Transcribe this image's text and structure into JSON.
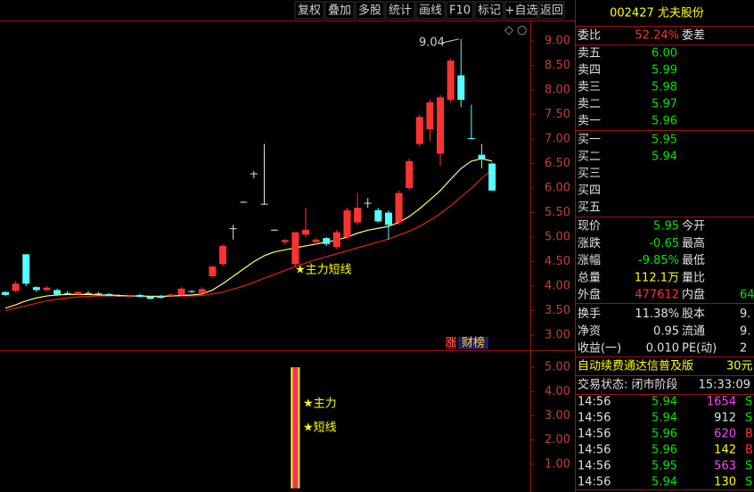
{
  "toolbar": {
    "buttons": [
      "复权",
      "叠加",
      "多股",
      "统计",
      "画线",
      "F10",
      "标记",
      "+自选",
      "返回"
    ]
  },
  "kline_chart": {
    "type": "candlestick",
    "ylim": [
      2.71,
      9.4
    ],
    "yticks": [
      {
        "value": 9,
        "label": "9.00"
      },
      {
        "value": 8.5,
        "label": "8.50"
      },
      {
        "value": 8,
        "label": "8.00"
      },
      {
        "value": 7.5,
        "label": "7.50"
      },
      {
        "value": 7,
        "label": "7.00"
      },
      {
        "value": 6.5,
        "label": "6.50"
      },
      {
        "value": 6,
        "label": "6.00"
      },
      {
        "value": 5.5,
        "label": "5.50"
      },
      {
        "value": 5,
        "label": "5.00"
      },
      {
        "value": 4.5,
        "label": "4.50"
      },
      {
        "value": 4,
        "label": "4.00"
      },
      {
        "value": 3.5,
        "label": "3.50"
      },
      {
        "value": 3,
        "label": "3.00"
      }
    ],
    "up_color": "#ff3232",
    "down_color": "#54ffff",
    "flat_color": "#e0e0e0",
    "open": [
      3.88,
      3.9,
      4.65,
      3.98,
      3.92,
      3.92,
      3.86,
      3.83,
      3.86,
      3.85,
      3.84,
      3.81,
      3.78,
      3.82,
      3.79,
      3.8,
      3.8,
      3.82,
      3.9,
      3.86,
      4.2,
      4.45,
      5.18,
      5.72,
      6.3,
      5.68,
      5.15,
      4.9,
      4.45,
      5.05,
      4.9,
      4.98,
      4.8,
      5.0,
      5.3,
      5.7,
      5.55,
      5.5,
      5.3,
      6.0,
      6.9,
      7.2,
      6.7,
      7.8,
      8.3,
      7.02,
      6.68,
      6.5
    ],
    "high": [
      3.9,
      4.1,
      4.65,
      4.0,
      4.0,
      3.95,
      3.9,
      3.9,
      3.9,
      3.88,
      3.86,
      3.83,
      3.82,
      3.84,
      3.8,
      3.82,
      3.84,
      3.98,
      3.92,
      3.98,
      4.42,
      4.85,
      5.25,
      5.73,
      6.35,
      6.9,
      5.16,
      4.96,
      5.1,
      5.6,
      4.98,
      5.0,
      5.15,
      5.6,
      5.9,
      5.8,
      5.6,
      5.55,
      5.95,
      6.6,
      7.5,
      7.8,
      7.9,
      8.65,
      9.04,
      7.7,
      6.9,
      6.52
    ],
    "low": [
      3.8,
      3.88,
      4.0,
      3.88,
      3.9,
      3.8,
      3.82,
      3.82,
      3.84,
      3.83,
      3.79,
      3.79,
      3.76,
      3.77,
      3.73,
      3.75,
      3.78,
      3.8,
      3.86,
      3.84,
      4.18,
      4.4,
      4.95,
      5.71,
      6.2,
      5.66,
      5.14,
      4.85,
      4.4,
      5.0,
      4.85,
      4.82,
      4.75,
      4.95,
      5.25,
      5.6,
      5.3,
      4.95,
      5.25,
      5.95,
      6.85,
      6.95,
      6.45,
      7.75,
      7.65,
      7.0,
      6.4,
      5.95
    ],
    "close": [
      3.82,
      4.05,
      4.05,
      3.92,
      3.97,
      3.83,
      3.84,
      3.88,
      3.86,
      3.85,
      3.8,
      3.81,
      3.8,
      3.78,
      3.74,
      3.76,
      3.83,
      3.95,
      3.88,
      3.94,
      4.4,
      4.82,
      5.18,
      5.72,
      6.3,
      5.68,
      5.15,
      4.94,
      5.1,
      5.15,
      4.95,
      4.86,
      5.1,
      5.55,
      5.6,
      5.7,
      5.32,
      5.25,
      5.9,
      6.55,
      7.45,
      7.75,
      7.85,
      8.6,
      7.8,
      7.0,
      6.6,
      5.95
    ],
    "ma_short": {
      "color": "#ffff66",
      "values": [
        3.55,
        3.62,
        3.7,
        3.76,
        3.8,
        3.82,
        3.83,
        3.83,
        3.83,
        3.82,
        3.82,
        3.81,
        3.8,
        3.8,
        3.79,
        3.79,
        3.8,
        3.81,
        3.82,
        3.84,
        3.92,
        4.05,
        4.2,
        4.35,
        4.5,
        4.62,
        4.7,
        4.74,
        4.78,
        4.82,
        4.86,
        4.9,
        4.94,
        5.0,
        5.08,
        5.14,
        5.18,
        5.22,
        5.3,
        5.42,
        5.58,
        5.76,
        5.95,
        6.18,
        6.4,
        6.55,
        6.6,
        6.55
      ]
    },
    "ma_long": {
      "color": "#e02020",
      "values": [
        3.5,
        3.55,
        3.6,
        3.65,
        3.7,
        3.73,
        3.76,
        3.78,
        3.79,
        3.8,
        3.8,
        3.8,
        3.8,
        3.8,
        3.8,
        3.8,
        3.8,
        3.8,
        3.8,
        3.81,
        3.84,
        3.88,
        3.94,
        4.0,
        4.08,
        4.16,
        4.24,
        4.32,
        4.4,
        4.47,
        4.54,
        4.6,
        4.66,
        4.72,
        4.78,
        4.84,
        4.9,
        4.96,
        5.04,
        5.12,
        5.22,
        5.34,
        5.48,
        5.64,
        5.82,
        6.0,
        6.2,
        6.38
      ]
    },
    "high_label": "9.04",
    "signal_label": "★主力短线",
    "tags": [
      "涨",
      "财榜"
    ]
  },
  "indicator_chart": {
    "ylim": [
      0,
      5.63
    ],
    "yticks": [
      {
        "value": 5,
        "label": "5.00"
      },
      {
        "value": 4,
        "label": "4.00"
      },
      {
        "value": 3,
        "label": "3.00"
      },
      {
        "value": 2,
        "label": "2.00"
      },
      {
        "value": 1,
        "label": "1.00"
      }
    ],
    "labels": [
      "★主力",
      "★短线"
    ],
    "values": [
      null,
      null,
      null,
      null,
      null,
      null,
      null,
      null,
      null,
      null,
      null,
      null,
      null,
      null,
      null,
      null,
      null,
      null,
      null,
      null,
      null,
      null,
      null,
      null,
      null,
      null,
      null,
      null,
      5,
      null,
      null,
      null,
      null,
      null,
      null,
      null,
      null,
      null,
      null,
      null,
      null,
      null,
      null,
      null,
      null,
      null,
      null,
      null
    ]
  },
  "panel": {
    "stock": "002427 尤夫股份",
    "ratio": {
      "label": "委比",
      "value": "52.24%",
      "label2": "委差"
    },
    "asks": [
      {
        "label": "卖五",
        "price": "6.00"
      },
      {
        "label": "卖四",
        "price": "5.99"
      },
      {
        "label": "卖三",
        "price": "5.98"
      },
      {
        "label": "卖二",
        "price": "5.97"
      },
      {
        "label": "卖一",
        "price": "5.96"
      }
    ],
    "bids": [
      {
        "label": "买一",
        "price": "5.95"
      },
      {
        "label": "买二",
        "price": "5.94"
      },
      {
        "label": "买三"
      },
      {
        "label": "买四"
      },
      {
        "label": "买五"
      }
    ],
    "quote": [
      {
        "label": "现价",
        "value": "5.95",
        "color": "#00e600",
        "label2": "今开"
      },
      {
        "label": "涨跌",
        "value": "-0.65",
        "color": "#00e600",
        "label2": "最高"
      },
      {
        "label": "涨幅",
        "value": "-9.85%",
        "color": "#00e600",
        "label2": "最低"
      },
      {
        "label": "总量",
        "value": "112.1万",
        "color": "#ffff00",
        "label2": "量比"
      },
      {
        "label": "外盘",
        "value": "477612",
        "color": "#ff3232",
        "label2": "内盘",
        "value2": "64",
        "color2": "#00e600"
      },
      {
        "label": "换手",
        "value": "11.38%",
        "color": "#e0e0e0",
        "label2": "股本",
        "value2": "9.",
        "color2": "#e0e0e0"
      },
      {
        "label": "净资",
        "value": "0.95",
        "color": "#e0e0e0",
        "label2": "流通",
        "value2": "9.",
        "color2": "#e0e0e0"
      },
      {
        "label": "收益(一)",
        "value": "0.010",
        "color": "#e0e0e0",
        "label2": "PE(动)",
        "value2": "2",
        "color2": "#e0e0e0"
      }
    ],
    "promo": {
      "text": "自动续费通达信普及版",
      "price": "30元"
    },
    "status": {
      "text": "交易状态: 闭市阶段",
      "time": "15:33:09"
    },
    "trades": [
      {
        "time": "14:56",
        "price": "5.94",
        "volume": "1654",
        "vcolor": "#ff44ff",
        "flag": "S"
      },
      {
        "time": "14:56",
        "price": "5.94",
        "volume": "912",
        "vcolor": "#e0e0e0",
        "flag": "S"
      },
      {
        "time": "14:56",
        "price": "5.96",
        "volume": "620",
        "vcolor": "#ff44ff",
        "flag": "B"
      },
      {
        "time": "14:56",
        "price": "5.96",
        "volume": "142",
        "vcolor": "#ffff00",
        "flag": "B"
      },
      {
        "time": "14:56",
        "price": "5.95",
        "volume": "563",
        "vcolor": "#ff44ff",
        "flag": "S"
      },
      {
        "time": "14:56",
        "price": "5.94",
        "volume": "130",
        "vcolor": "#ffff00",
        "flag": "S"
      }
    ]
  }
}
